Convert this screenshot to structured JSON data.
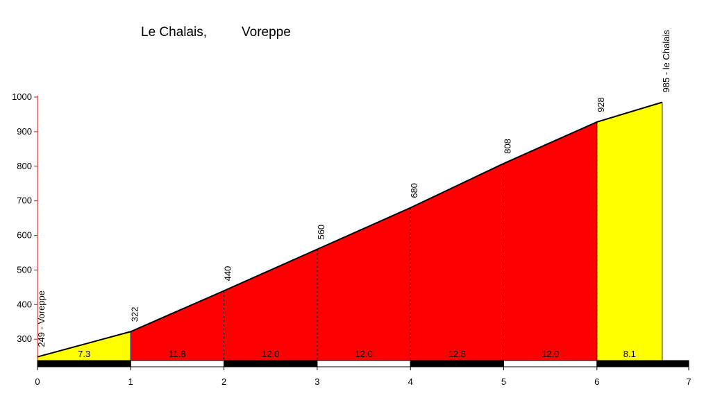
{
  "chart_data": {
    "type": "area",
    "title_left": "Le Chalais,",
    "title_right": "Voreppe",
    "xlabel": "",
    "ylabel": "",
    "xlim": [
      0,
      7
    ],
    "ylim": [
      240,
      1000
    ],
    "x_ticks": [
      0,
      1,
      2,
      3,
      4,
      5,
      6,
      7
    ],
    "y_ticks": [
      300,
      400,
      500,
      600,
      700,
      800,
      900,
      1000
    ],
    "points": [
      {
        "x": 0,
        "y": 249,
        "label": "249 - Voreppe"
      },
      {
        "x": 1,
        "y": 322,
        "label": "322"
      },
      {
        "x": 2,
        "y": 440,
        "label": "440"
      },
      {
        "x": 3,
        "y": 560,
        "label": "560"
      },
      {
        "x": 4,
        "y": 680,
        "label": "680"
      },
      {
        "x": 5,
        "y": 808,
        "label": "808"
      },
      {
        "x": 6,
        "y": 928,
        "label": "928"
      },
      {
        "x": 6.7,
        "y": 985,
        "label": "985 - le Chalais"
      }
    ],
    "segments": [
      {
        "gradient": "7.3",
        "color": "#ffff00"
      },
      {
        "gradient": "11.8",
        "color": "#ff0000"
      },
      {
        "gradient": "12.0",
        "color": "#ff0000"
      },
      {
        "gradient": "12.0",
        "color": "#ff0000"
      },
      {
        "gradient": "12.8",
        "color": "#ff0000"
      },
      {
        "gradient": "12.0",
        "color": "#ff0000"
      },
      {
        "gradient": "8.1",
        "color": "#ffff00"
      }
    ],
    "colors": {
      "easy": "#ffff00",
      "steep": "#ff0000",
      "axis": "#ff0000",
      "profile": "#000000"
    }
  }
}
